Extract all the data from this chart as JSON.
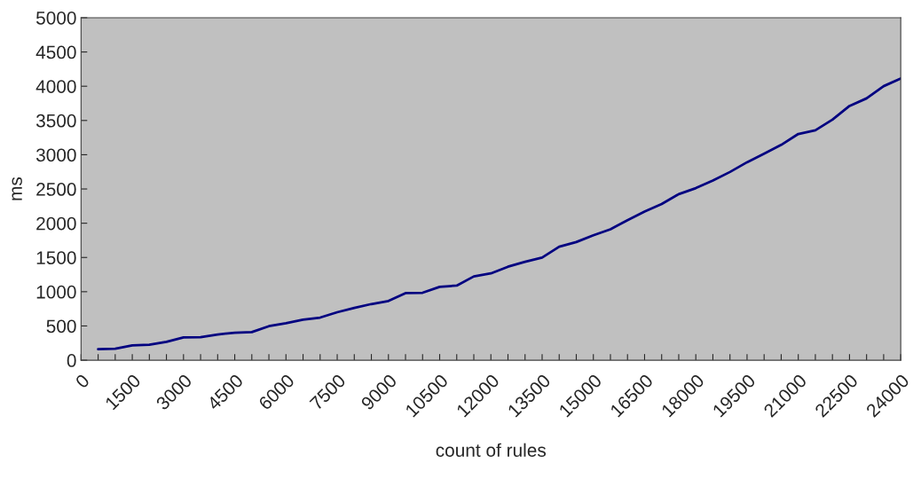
{
  "chart_data": {
    "type": "line",
    "xlabel": "count of rules",
    "ylabel": "ms",
    "x": [
      500,
      1000,
      1500,
      2000,
      2500,
      3000,
      3500,
      4000,
      4500,
      5000,
      5500,
      6000,
      6500,
      7000,
      7500,
      8000,
      8500,
      9000,
      9500,
      10000,
      10500,
      11000,
      11500,
      12000,
      12500,
      13000,
      13500,
      14000,
      14500,
      15000,
      15500,
      16000,
      16500,
      17000,
      17500,
      18000,
      18500,
      19000,
      19500,
      20000,
      20500,
      21000,
      21500,
      22000,
      22500,
      23000,
      23500,
      24000
    ],
    "series": [
      {
        "color": "#000080",
        "values": [
          160,
          168,
          216,
          225,
          268,
          332,
          337,
          376,
          402,
          410,
          497,
          540,
          592,
          622,
          700,
          764,
          820,
          864,
          980,
          985,
          1071,
          1089,
          1223,
          1267,
          1365,
          1436,
          1499,
          1658,
          1725,
          1823,
          1912,
          2045,
          2170,
          2281,
          2424,
          2512,
          2623,
          2748,
          2890,
          3014,
          3144,
          3303,
          3357,
          3512,
          3712,
          3823,
          4001,
          4113
        ]
      }
    ],
    "xlim": [
      0,
      24000
    ],
    "xticks": [
      0,
      {
        "value": 500,
        "label": null
      },
      {
        "value": 1000,
        "label": null
      },
      1500,
      {
        "value": 2000,
        "label": null
      },
      {
        "value": 2500,
        "label": null
      },
      3000,
      {
        "value": 3500,
        "label": null
      },
      {
        "value": 4000,
        "label": null
      },
      4500,
      {
        "value": 5000,
        "label": null
      },
      {
        "value": 5500,
        "label": null
      },
      6000,
      {
        "value": 6500,
        "label": null
      },
      {
        "value": 7000,
        "label": null
      },
      7500,
      {
        "value": 8000,
        "label": null
      },
      {
        "value": 8500,
        "label": null
      },
      9000,
      {
        "value": 9500,
        "label": null
      },
      {
        "value": 10000,
        "label": null
      },
      10500,
      {
        "value": 11000,
        "label": null
      },
      {
        "value": 11500,
        "label": null
      },
      12000,
      {
        "value": 12500,
        "label": null
      },
      {
        "value": 13000,
        "label": null
      },
      13500,
      {
        "value": 14000,
        "label": null
      },
      {
        "value": 14500,
        "label": null
      },
      15000,
      {
        "value": 15500,
        "label": null
      },
      {
        "value": 16000,
        "label": null
      },
      16500,
      {
        "value": 17000,
        "label": null
      },
      {
        "value": 17500,
        "label": null
      },
      18000,
      {
        "value": 18500,
        "label": null
      },
      {
        "value": 19000,
        "label": null
      },
      19500,
      {
        "value": 20000,
        "label": null
      },
      {
        "value": 20500,
        "label": null
      },
      21000,
      {
        "value": 21500,
        "label": null
      },
      {
        "value": 22000,
        "label": null
      },
      22500,
      {
        "value": 23000,
        "label": null
      },
      {
        "value": 23500,
        "label": null
      },
      24000
    ],
    "ylim": [
      0,
      5000
    ],
    "yticks": [
      0,
      500,
      1000,
      1500,
      2000,
      2500,
      3000,
      3500,
      4000,
      4500,
      5000
    ],
    "grid": false,
    "legend": false,
    "marker": "none",
    "line_style": "solid"
  }
}
